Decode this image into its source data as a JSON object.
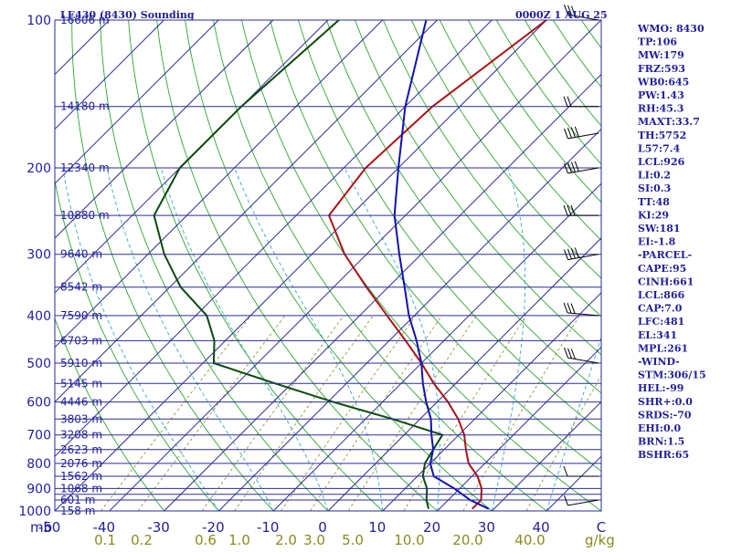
{
  "header": {
    "station": "LE430 (8430) Sounding",
    "time": "0000Z  1 AUG 25"
  },
  "axis": {
    "temp_unit": "mb",
    "mixing_unit": "g/kg"
  },
  "indices": [
    "WMO: 8430",
    "TP:106",
    "MW:179",
    "FRZ:593",
    "WB0:645",
    "PW:1.43",
    "RH:45.3",
    "MAXT:33.7",
    "TH:5752",
    "L57:7.4",
    "LCL:926",
    "LI:0.2",
    "SI:0.3",
    "TT:48",
    "KI:29",
    "SW:181",
    "EI:-1.8",
    "-PARCEL-",
    "CAPE:95",
    "CINH:661",
    "LCL:866",
    "CAP:7.0",
    "LFC:481",
    "EL:341",
    "MPL:261",
    "-WIND-",
    "STM:306/15",
    "HEL:-99",
    "SHR+:0.0",
    "SRDS:-70",
    "EHI:0.0",
    "BRN:1.5",
    "BSHR:65"
  ],
  "chart_data": {
    "type": "line",
    "title": "LE430 (8430) Sounding",
    "pressure_levels": [
      100,
      150,
      200,
      250,
      300,
      350,
      400,
      450,
      500,
      550,
      600,
      650,
      700,
      750,
      800,
      850,
      900,
      925,
      950,
      1000
    ],
    "pressure_tick_labels": [
      "100",
      "200",
      "300",
      "400",
      "500",
      "600",
      "700",
      "800",
      "900",
      "1000"
    ],
    "height_labels": [
      {
        "p": 100,
        "label": "16606 m"
      },
      {
        "p": 150,
        "label": "14180 m"
      },
      {
        "p": 200,
        "label": "12340 m"
      },
      {
        "p": 250,
        "label": "10880 m"
      },
      {
        "p": 300,
        "label": "9640 m"
      },
      {
        "p": 350,
        "label": "8542 m"
      },
      {
        "p": 400,
        "label": "7590 m"
      },
      {
        "p": 450,
        "label": "6703 m"
      },
      {
        "p": 500,
        "label": "5910 m"
      },
      {
        "p": 550,
        "label": "5145 m"
      },
      {
        "p": 600,
        "label": "4446 m"
      },
      {
        "p": 650,
        "label": "3803 m"
      },
      {
        "p": 700,
        "label": "3208 m"
      },
      {
        "p": 750,
        "label": "2623 m"
      },
      {
        "p": 800,
        "label": "2076 m"
      },
      {
        "p": 850,
        "label": "1562 m"
      },
      {
        "p": 900,
        "label": "1068 m"
      },
      {
        "p": 950,
        "label": "601 m"
      },
      {
        "p": 1000,
        "label": "158 m"
      }
    ],
    "temperature_ticks": [
      "-50",
      "-40",
      "-30",
      "-20",
      "-10",
      "0",
      "10",
      "20",
      "30",
      "40"
    ],
    "mixing_ratio_ticks": [
      "0.1",
      "0.2",
      "0.6",
      "1.0",
      "2.0",
      "3.0",
      "5.0",
      "10.0",
      "20.0",
      "40.0"
    ],
    "series": [
      {
        "name": "Temperature",
        "color": "#b01010",
        "points": [
          [
            100,
            -50
          ],
          [
            150,
            -55
          ],
          [
            200,
            -56
          ],
          [
            250,
            -54
          ],
          [
            300,
            -44
          ],
          [
            350,
            -34
          ],
          [
            400,
            -25
          ],
          [
            450,
            -17
          ],
          [
            500,
            -10
          ],
          [
            550,
            -4
          ],
          [
            600,
            2
          ],
          [
            650,
            7
          ],
          [
            700,
            11
          ],
          [
            750,
            14
          ],
          [
            800,
            17
          ],
          [
            850,
            21
          ],
          [
            900,
            24
          ],
          [
            950,
            26
          ],
          [
            990,
            26
          ]
        ]
      },
      {
        "name": "Dewpoint",
        "color": "#0a4a0a",
        "points": [
          [
            100,
            -88
          ],
          [
            150,
            -90
          ],
          [
            200,
            -90
          ],
          [
            250,
            -86
          ],
          [
            300,
            -77
          ],
          [
            350,
            -68
          ],
          [
            400,
            -58
          ],
          [
            450,
            -52
          ],
          [
            500,
            -48
          ],
          [
            550,
            -33
          ],
          [
            600,
            -19
          ],
          [
            650,
            -5
          ],
          [
            700,
            7
          ],
          [
            750,
            8
          ],
          [
            800,
            9
          ],
          [
            850,
            11
          ],
          [
            900,
            14
          ],
          [
            950,
            16
          ],
          [
            990,
            18
          ]
        ]
      },
      {
        "name": "Parcel",
        "color": "#1010b0",
        "points": [
          [
            100,
            -72
          ],
          [
            150,
            -60
          ],
          [
            200,
            -50
          ],
          [
            250,
            -42
          ],
          [
            300,
            -34
          ],
          [
            350,
            -27
          ],
          [
            400,
            -21
          ],
          [
            450,
            -15
          ],
          [
            500,
            -10
          ],
          [
            550,
            -6
          ],
          [
            600,
            -2
          ],
          [
            650,
            2
          ],
          [
            700,
            5
          ],
          [
            750,
            8
          ],
          [
            800,
            10
          ],
          [
            850,
            13
          ],
          [
            900,
            19
          ],
          [
            950,
            24
          ],
          [
            990,
            29
          ]
        ]
      }
    ],
    "wind_barbs": [
      {
        "p": 100,
        "dir": 100,
        "spd": 25
      },
      {
        "p": 150,
        "dir": 90,
        "spd": 20
      },
      {
        "p": 170,
        "dir": 80,
        "spd": 40
      },
      {
        "p": 200,
        "dir": 80,
        "spd": 40
      },
      {
        "p": 250,
        "dir": 90,
        "spd": 30
      },
      {
        "p": 300,
        "dir": 80,
        "spd": 40
      },
      {
        "p": 400,
        "dir": 95,
        "spd": 30
      },
      {
        "p": 500,
        "dir": 100,
        "spd": 30
      },
      {
        "p": 850,
        "dir": 90,
        "spd": 5
      },
      {
        "p": 950,
        "dir": 80,
        "spd": 5
      }
    ],
    "xlim": [
      -50,
      50
    ],
    "ylim": [
      1000,
      100
    ],
    "grid": true
  }
}
